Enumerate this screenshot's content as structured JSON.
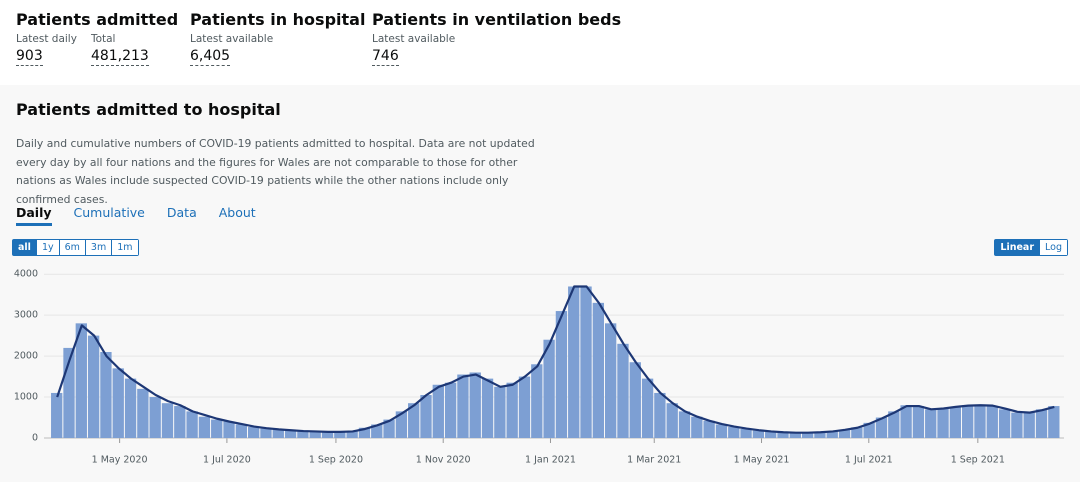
{
  "header": {
    "stats": [
      {
        "title": "Patients admitted",
        "items": [
          {
            "label": "Latest daily",
            "value": "903"
          },
          {
            "label": "Total",
            "value": "481,213"
          }
        ]
      },
      {
        "title": "Patients in hospital",
        "items": [
          {
            "label": "Latest available",
            "value": "6,405"
          }
        ]
      },
      {
        "title": "Patients in ventilation beds",
        "items": [
          {
            "label": "Latest available",
            "value": "746"
          }
        ]
      }
    ]
  },
  "card": {
    "title": "Patients admitted to hospital",
    "description": "Daily and cumulative numbers of COVID-19 patients admitted to hospital. Data are not updated every day by all four nations and the figures for Wales are not comparable to those for other nations as Wales include suspected COVID-19 patients while the other nations include only confirmed cases.",
    "tabs": [
      "Daily",
      "Cumulative",
      "Data",
      "About"
    ],
    "range_buttons": [
      "all",
      "1y",
      "6m",
      "3m",
      "1m"
    ],
    "scale_buttons": [
      "Linear",
      "Log"
    ]
  },
  "chart_data": {
    "type": "bar",
    "log_scale": false,
    "grid": true,
    "x": [
      "2020-03-23",
      "2020-03-30",
      "2020-04-06",
      "2020-04-13",
      "2020-04-20",
      "2020-04-27",
      "2020-05-04",
      "2020-05-11",
      "2020-05-18",
      "2020-05-25",
      "2020-06-01",
      "2020-06-08",
      "2020-06-15",
      "2020-06-22",
      "2020-06-29",
      "2020-07-06",
      "2020-07-13",
      "2020-07-20",
      "2020-07-27",
      "2020-08-03",
      "2020-08-10",
      "2020-08-17",
      "2020-08-24",
      "2020-08-31",
      "2020-09-07",
      "2020-09-14",
      "2020-09-21",
      "2020-09-28",
      "2020-10-05",
      "2020-10-12",
      "2020-10-19",
      "2020-10-26",
      "2020-11-02",
      "2020-11-09",
      "2020-11-16",
      "2020-11-23",
      "2020-11-30",
      "2020-12-07",
      "2020-12-14",
      "2020-12-21",
      "2020-12-28",
      "2021-01-04",
      "2021-01-11",
      "2021-01-18",
      "2021-01-25",
      "2021-02-01",
      "2021-02-08",
      "2021-02-15",
      "2021-02-22",
      "2021-03-01",
      "2021-03-08",
      "2021-03-15",
      "2021-03-22",
      "2021-03-29",
      "2021-04-05",
      "2021-04-12",
      "2021-04-19",
      "2021-04-26",
      "2021-05-03",
      "2021-05-10",
      "2021-05-17",
      "2021-05-24",
      "2021-05-31",
      "2021-06-07",
      "2021-06-14",
      "2021-06-21",
      "2021-06-28",
      "2021-07-05",
      "2021-07-12",
      "2021-07-19",
      "2021-07-26",
      "2021-08-02",
      "2021-08-09",
      "2021-08-16",
      "2021-08-23",
      "2021-08-30",
      "2021-09-06",
      "2021-09-13",
      "2021-09-20",
      "2021-09-27",
      "2021-10-04",
      "2021-10-11"
    ],
    "series": [
      {
        "color": "#7d9fd3",
        "values": [
          1100,
          2200,
          2800,
          2500,
          2100,
          1700,
          1450,
          1200,
          1000,
          850,
          780,
          650,
          520,
          450,
          400,
          330,
          270,
          230,
          200,
          180,
          170,
          150,
          140,
          150,
          170,
          250,
          330,
          450,
          650,
          850,
          1050,
          1300,
          1350,
          1550,
          1600,
          1450,
          1250,
          1350,
          1500,
          1800,
          2400,
          3100,
          3700,
          3700,
          3300,
          2800,
          2300,
          1850,
          1450,
          1100,
          850,
          650,
          520,
          420,
          330,
          270,
          220,
          180,
          150,
          130,
          120,
          130,
          140,
          160,
          200,
          260,
          370,
          500,
          650,
          800,
          780,
          700,
          720,
          760,
          800,
          800,
          780,
          700,
          620,
          620,
          700,
          780
        ]
      },
      {
        "color": "#1d3775",
        "values": [
          1000,
          1900,
          2750,
          2500,
          2000,
          1700,
          1450,
          1250,
          1050,
          900,
          800,
          650,
          560,
          470,
          400,
          340,
          280,
          240,
          210,
          190,
          170,
          160,
          150,
          150,
          160,
          220,
          310,
          420,
          600,
          800,
          1050,
          1250,
          1350,
          1500,
          1550,
          1400,
          1250,
          1300,
          1500,
          1750,
          2300,
          3000,
          3700,
          3700,
          3300,
          2800,
          2300,
          1850,
          1450,
          1100,
          850,
          650,
          520,
          420,
          340,
          280,
          230,
          190,
          160,
          140,
          130,
          130,
          140,
          160,
          200,
          250,
          350,
          480,
          620,
          780,
          780,
          700,
          720,
          760,
          790,
          800,
          790,
          720,
          640,
          620,
          680,
          760
        ]
      }
    ],
    "xlim": [
      "2020-03-19",
      "2021-10-20"
    ],
    "xticks": [
      {
        "value": "2020-05-01",
        "label": "1 May 2020"
      },
      {
        "value": "2020-07-01",
        "label": "1 Jul 2020"
      },
      {
        "value": "2020-09-01",
        "label": "1 Sep 2020"
      },
      {
        "value": "2020-11-01",
        "label": "1 Nov 2020"
      },
      {
        "value": "2021-01-01",
        "label": "1 Jan 2021"
      },
      {
        "value": "2021-03-01",
        "label": "1 Mar 2021"
      },
      {
        "value": "2021-05-01",
        "label": "1 May 2021"
      },
      {
        "value": "2021-07-01",
        "label": "1 Jul 2021"
      },
      {
        "value": "2021-09-01",
        "label": "1 Sep 2021"
      }
    ],
    "ylim": [
      0,
      4200
    ],
    "yticks": [
      0,
      1000,
      2000,
      3000,
      4000
    ]
  }
}
